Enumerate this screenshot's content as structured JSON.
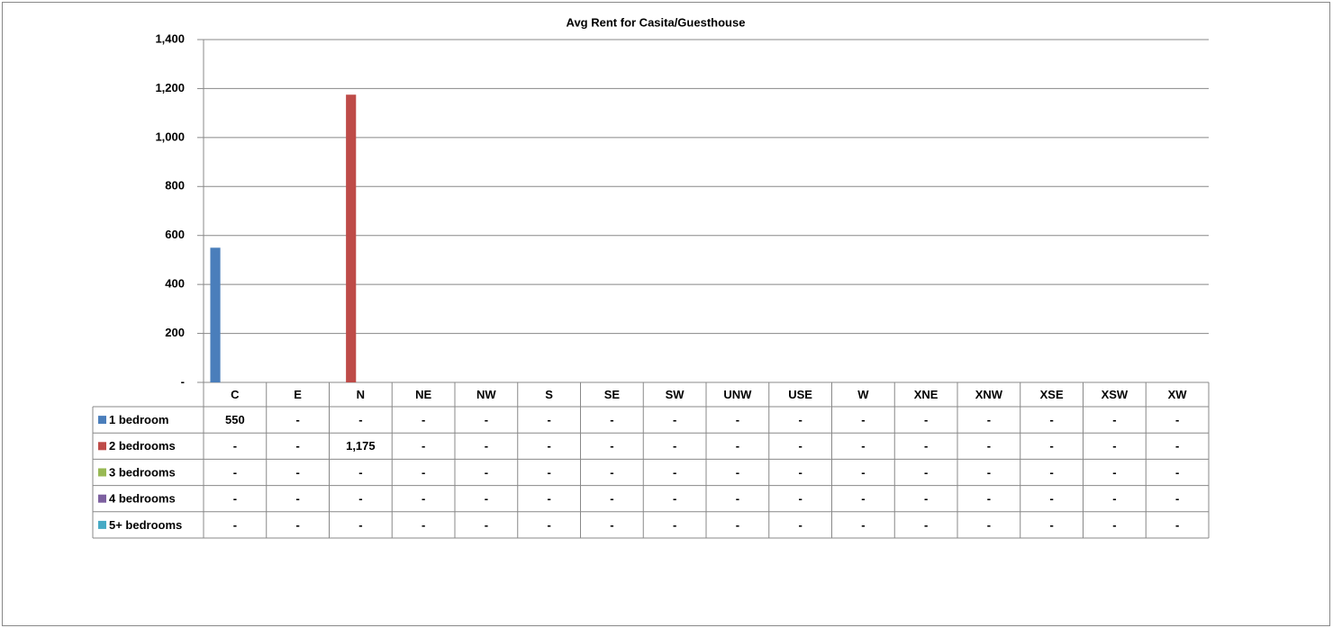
{
  "chart_data": {
    "type": "bar",
    "title": "Avg Rent for Casita/Guesthouse",
    "categories": [
      "C",
      "E",
      "N",
      "NE",
      "NW",
      "S",
      "SE",
      "SW",
      "UNW",
      "USE",
      "W",
      "XNE",
      "XNW",
      "XSE",
      "XSW",
      "XW"
    ],
    "series": [
      {
        "name": "1 bedroom",
        "color": "#4a7ebb",
        "values": [
          550,
          0,
          0,
          0,
          0,
          0,
          0,
          0,
          0,
          0,
          0,
          0,
          0,
          0,
          0,
          0
        ],
        "value_labels": [
          "550",
          "-",
          "-",
          "-",
          "-",
          "-",
          "-",
          "-",
          "-",
          "-",
          "-",
          "-",
          "-",
          "-",
          "-",
          "-"
        ]
      },
      {
        "name": "2 bedrooms",
        "color": "#be4b48",
        "values": [
          0,
          0,
          1175,
          0,
          0,
          0,
          0,
          0,
          0,
          0,
          0,
          0,
          0,
          0,
          0,
          0
        ],
        "value_labels": [
          "-",
          "-",
          "1,175",
          "-",
          "-",
          "-",
          "-",
          "-",
          "-",
          "-",
          "-",
          "-",
          "-",
          "-",
          "-",
          "-"
        ]
      },
      {
        "name": "3 bedrooms",
        "color": "#98b954",
        "values": [
          0,
          0,
          0,
          0,
          0,
          0,
          0,
          0,
          0,
          0,
          0,
          0,
          0,
          0,
          0,
          0
        ],
        "value_labels": [
          "-",
          "-",
          "-",
          "-",
          "-",
          "-",
          "-",
          "-",
          "-",
          "-",
          "-",
          "-",
          "-",
          "-",
          "-",
          "-"
        ]
      },
      {
        "name": "4 bedrooms",
        "color": "#7d60a0",
        "values": [
          0,
          0,
          0,
          0,
          0,
          0,
          0,
          0,
          0,
          0,
          0,
          0,
          0,
          0,
          0,
          0
        ],
        "value_labels": [
          "-",
          "-",
          "-",
          "-",
          "-",
          "-",
          "-",
          "-",
          "-",
          "-",
          "-",
          "-",
          "-",
          "-",
          "-",
          "-"
        ]
      },
      {
        "name": "5+ bedrooms",
        "color": "#46aac5",
        "values": [
          0,
          0,
          0,
          0,
          0,
          0,
          0,
          0,
          0,
          0,
          0,
          0,
          0,
          0,
          0,
          0
        ],
        "value_labels": [
          "-",
          "-",
          "-",
          "-",
          "-",
          "-",
          "-",
          "-",
          "-",
          "-",
          "-",
          "-",
          "-",
          "-",
          "-",
          "-"
        ]
      }
    ],
    "ylim": [
      0,
      1400
    ],
    "yticks": [
      {
        "value": 0,
        "label": "-"
      },
      200,
      400,
      600,
      800,
      {
        "value": 1000,
        "label": "1,000"
      },
      {
        "value": 1200,
        "label": "1,200"
      },
      {
        "value": 1400,
        "label": "1,400"
      }
    ],
    "grid": true
  }
}
